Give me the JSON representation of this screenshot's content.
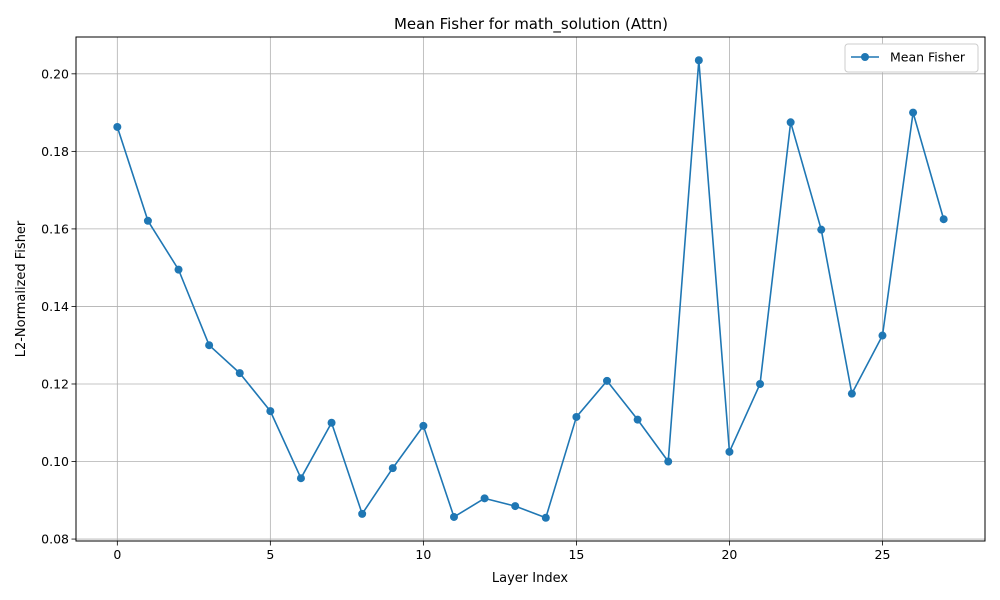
{
  "chart_data": {
    "type": "line",
    "title": "Mean Fisher for math_solution (Attn)",
    "xlabel": "Layer Index",
    "ylabel": "L2-Normalized Fisher",
    "xlim": [
      -1.35,
      28.35
    ],
    "ylim": [
      0.0795,
      0.2095
    ],
    "xticks": [
      0,
      5,
      10,
      15,
      20,
      25
    ],
    "xtick_labels": [
      "0",
      "5",
      "10",
      "15",
      "20",
      "25"
    ],
    "yticks": [
      0.08,
      0.1,
      0.12,
      0.14,
      0.16,
      0.18,
      0.2
    ],
    "ytick_labels": [
      "0.08",
      "0.10",
      "0.12",
      "0.14",
      "0.16",
      "0.18",
      "0.20"
    ],
    "grid": true,
    "legend_position": "top-right",
    "series": [
      {
        "name": "Mean Fisher",
        "color": "#1f77b4",
        "marker": "circle",
        "x": [
          0,
          1,
          2,
          3,
          4,
          5,
          6,
          7,
          8,
          9,
          10,
          11,
          12,
          13,
          14,
          15,
          16,
          17,
          18,
          19,
          20,
          21,
          22,
          23,
          24,
          25,
          26,
          27
        ],
        "values": [
          0.1863,
          0.1621,
          0.1495,
          0.13,
          0.1228,
          0.113,
          0.0957,
          0.11,
          0.0865,
          0.0983,
          0.1092,
          0.0857,
          0.0905,
          0.0885,
          0.0855,
          0.1115,
          0.1208,
          0.1108,
          0.1,
          0.2035,
          0.1025,
          0.12,
          0.1875,
          0.1598,
          0.1175,
          0.1325,
          0.19,
          0.1625
        ]
      }
    ]
  }
}
